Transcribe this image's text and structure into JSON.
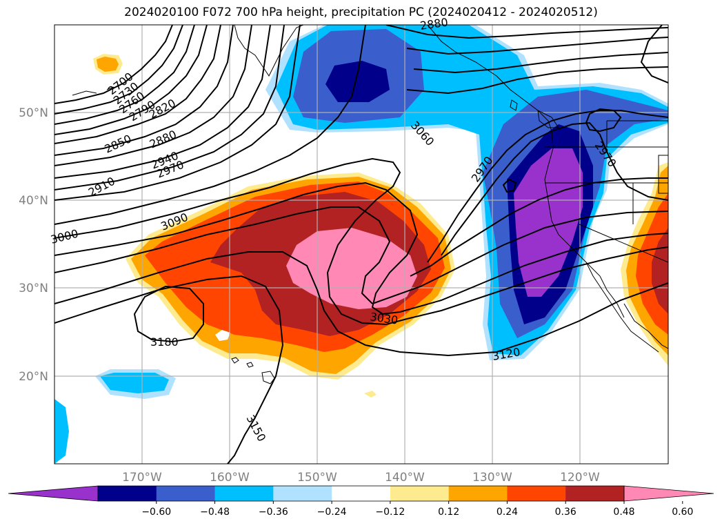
{
  "title": "2024020100 F072 700 hPa height, precipitation PC (2024020412 - 2024020512)",
  "lat_labels": [
    "50°N",
    "40°N",
    "30°N",
    "20°N"
  ],
  "lon_labels": [
    "170°W",
    "160°W",
    "150°W",
    "140°W",
    "130°W",
    "120°W"
  ],
  "contour_labels": [
    "2700",
    "2730",
    "2760",
    "2790",
    "2820",
    "2850",
    "2880",
    "2910",
    "2940",
    "2970",
    "3000",
    "3090",
    "3060",
    "2970",
    "2970",
    "3030",
    "3120",
    "3180",
    "3150",
    "2880"
  ],
  "colorbar": {
    "colors": [
      "#9932cc",
      "#00008b",
      "#3a5fcd",
      "#00bfff",
      "#b0e2ff",
      "#ffffff",
      "#ffeb8f",
      "#ffa500",
      "#ff4500",
      "#b22222",
      "#ff89b4"
    ],
    "ticks": [
      "−0.60",
      "−0.48",
      "−0.36",
      "−0.24",
      "−0.12",
      "0.12",
      "0.24",
      "0.36",
      "0.48",
      "0.60"
    ]
  },
  "palette": {
    "purple": "#9932cc",
    "navy": "#00008b",
    "royal": "#3a5fcd",
    "sky": "#00bfff",
    "lightsky": "#b0e2ff",
    "yellow": "#ffeb8f",
    "orange": "#ffa500",
    "redorange": "#ff4500",
    "firebrick": "#b22222",
    "pink": "#ff89b4"
  }
}
